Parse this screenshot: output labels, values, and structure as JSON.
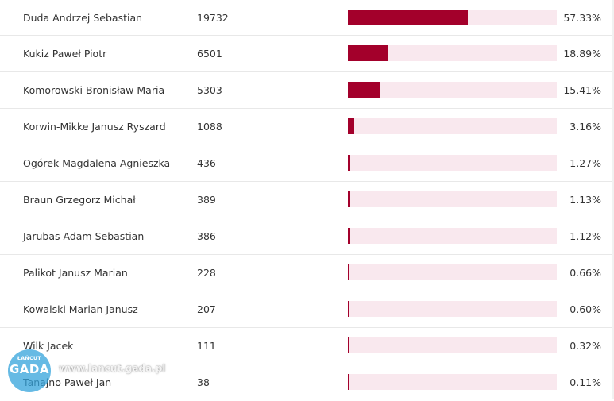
{
  "rows": [
    {
      "name": "Duda Andrzej Sebastian",
      "votes": "19732",
      "percent_label": "57.33%",
      "percent": 57.33
    },
    {
      "name": "Kukiz Paweł Piotr",
      "votes": "6501",
      "percent_label": "18.89%",
      "percent": 18.89
    },
    {
      "name": "Komorowski Bronisław Maria",
      "votes": "5303",
      "percent_label": "15.41%",
      "percent": 15.41
    },
    {
      "name": "Korwin-Mikke Janusz Ryszard",
      "votes": "1088",
      "percent_label": "3.16%",
      "percent": 3.16
    },
    {
      "name": "Ogórek Magdalena Agnieszka",
      "votes": "436",
      "percent_label": "1.27%",
      "percent": 1.27
    },
    {
      "name": "Braun Grzegorz Michał",
      "votes": "389",
      "percent_label": "1.13%",
      "percent": 1.13
    },
    {
      "name": "Jarubas Adam Sebastian",
      "votes": "386",
      "percent_label": "1.12%",
      "percent": 1.12
    },
    {
      "name": "Palikot Janusz Marian",
      "votes": "228",
      "percent_label": "0.66%",
      "percent": 0.66
    },
    {
      "name": "Kowalski Marian Janusz",
      "votes": "207",
      "percent_label": "0.60%",
      "percent": 0.6
    },
    {
      "name": "Wilk Jacek",
      "votes": "111",
      "percent_label": "0.32%",
      "percent": 0.32
    },
    {
      "name": "Tanajno Paweł Jan",
      "votes": "38",
      "percent_label": "0.11%",
      "percent": 0.11
    }
  ],
  "colors": {
    "bar_fill": "#a3002b",
    "bar_track": "#f9e8ee",
    "row_divider": "#e8e8e8",
    "text": "#333333"
  },
  "watermark": {
    "logo_small": "ŁAŃCUT",
    "logo_big": "GADA",
    "url": "www.lancut.gada.pl"
  }
}
